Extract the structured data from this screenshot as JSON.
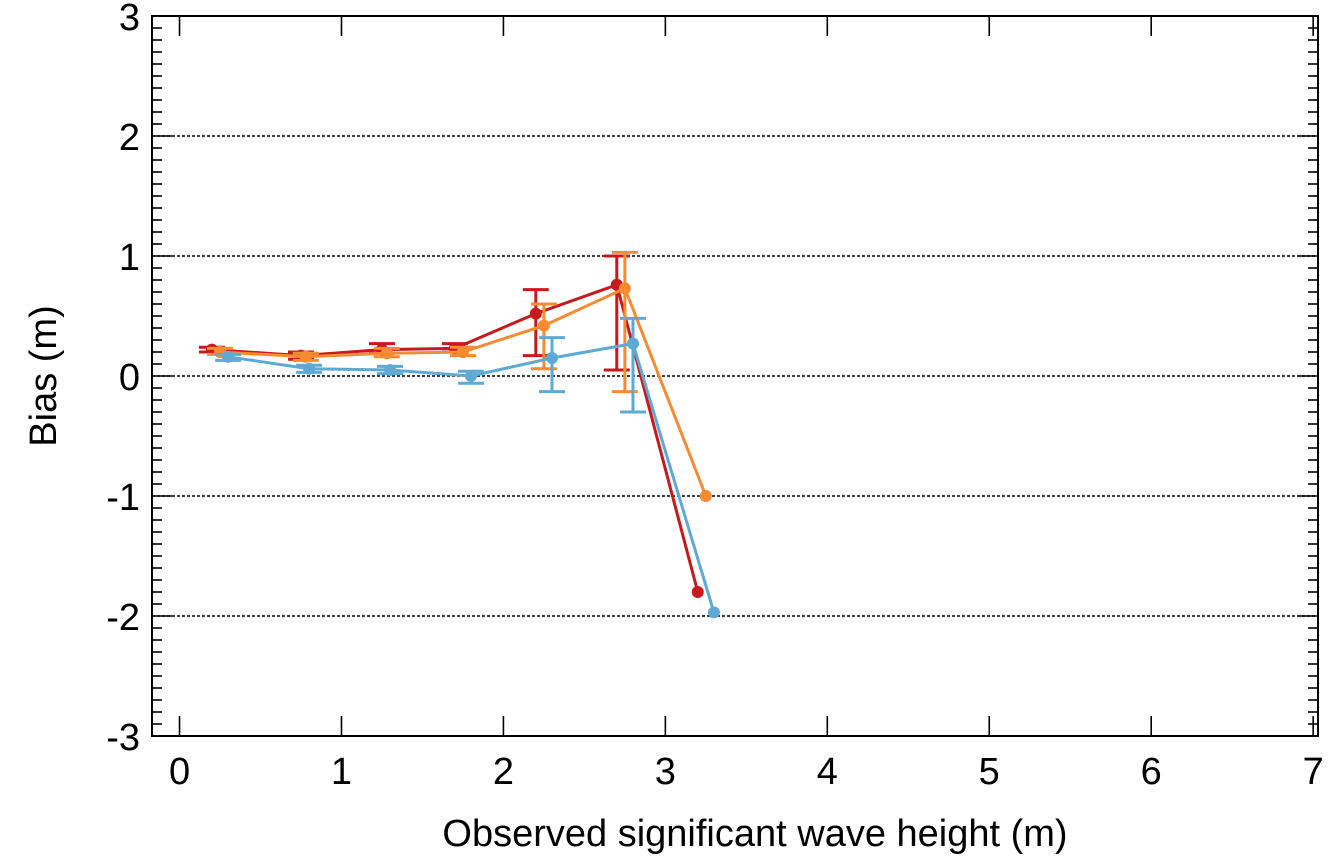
{
  "chart_data": {
    "type": "line",
    "title": "",
    "xlabel": "Observed significant wave height (m)",
    "ylabel": "Bias (m)",
    "xlim": [
      -0.17,
      7.03
    ],
    "ylim": [
      -3.0,
      3.0
    ],
    "x_ticks": [
      "0",
      "1",
      "2",
      "3",
      "4",
      "5",
      "6",
      "7"
    ],
    "y_ticks": [
      "3",
      "2",
      "1",
      "0",
      "-1",
      "-2",
      "-3"
    ],
    "y_tick_values": [
      3,
      2,
      1,
      0,
      -1,
      -2,
      -3
    ],
    "x_tick_values": [
      0,
      1,
      2,
      3,
      4,
      5,
      6,
      7
    ],
    "grid": {
      "horizontal_dotted_at": [
        2,
        1,
        0,
        -1,
        -2
      ]
    },
    "legend": "none",
    "series": [
      {
        "color": "#c8191c",
        "points": [
          {
            "x": 0.2,
            "y": 0.22,
            "lo": 0.2,
            "hi": 0.24
          },
          {
            "x": 0.75,
            "y": 0.17,
            "lo": 0.14,
            "hi": 0.2
          },
          {
            "x": 1.25,
            "y": 0.22,
            "lo": 0.19,
            "hi": 0.27
          },
          {
            "x": 1.7,
            "y": 0.23,
            "lo": 0.2,
            "hi": 0.27
          },
          {
            "x": 2.2,
            "y": 0.52,
            "lo": 0.17,
            "hi": 0.72
          },
          {
            "x": 2.7,
            "y": 0.76,
            "lo": 0.05,
            "hi": 1.0
          },
          {
            "x": 3.2,
            "y": -1.8
          }
        ]
      },
      {
        "color": "#f88b32",
        "points": [
          {
            "x": 0.25,
            "y": 0.2,
            "lo": 0.18,
            "hi": 0.23
          },
          {
            "x": 0.78,
            "y": 0.16,
            "lo": 0.13,
            "hi": 0.19
          },
          {
            "x": 1.28,
            "y": 0.19,
            "lo": 0.16,
            "hi": 0.23
          },
          {
            "x": 1.75,
            "y": 0.2,
            "lo": 0.17,
            "hi": 0.24
          },
          {
            "x": 2.25,
            "y": 0.42,
            "lo": 0.06,
            "hi": 0.6
          },
          {
            "x": 2.75,
            "y": 0.73,
            "lo": -0.13,
            "hi": 1.03
          },
          {
            "x": 3.25,
            "y": -1.0
          }
        ]
      },
      {
        "color": "#5fa9d5",
        "points": [
          {
            "x": 0.3,
            "y": 0.16,
            "lo": 0.13,
            "hi": 0.18
          },
          {
            "x": 0.8,
            "y": 0.06,
            "lo": 0.03,
            "hi": 0.09
          },
          {
            "x": 1.3,
            "y": 0.05,
            "lo": 0.02,
            "hi": 0.08
          },
          {
            "x": 1.8,
            "y": 0.0,
            "lo": -0.06,
            "hi": 0.04
          },
          {
            "x": 2.3,
            "y": 0.15,
            "lo": -0.13,
            "hi": 0.32
          },
          {
            "x": 2.8,
            "y": 0.27,
            "lo": -0.3,
            "hi": 0.48
          },
          {
            "x": 3.3,
            "y": -1.97
          }
        ]
      }
    ]
  }
}
